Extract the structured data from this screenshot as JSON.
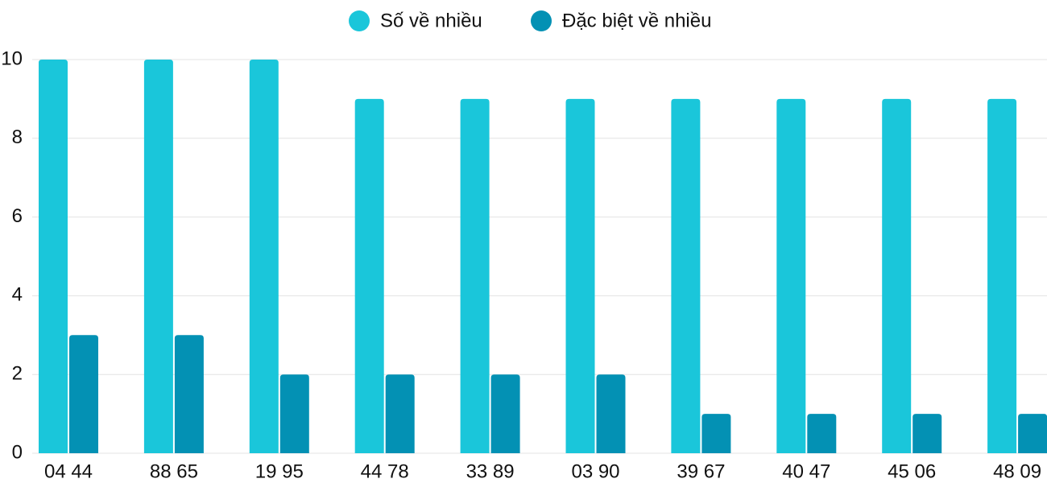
{
  "chart_data": {
    "type": "bar",
    "categories": [
      "04 44",
      "88 65",
      "19 95",
      "44 78",
      "33 89",
      "03 90",
      "39 67",
      "40 47",
      "45 06",
      "48 09"
    ],
    "series": [
      {
        "name": "Số về nhiều",
        "color": "#1ac6da",
        "values": [
          10,
          10,
          10,
          9,
          9,
          9,
          9,
          9,
          9,
          9
        ]
      },
      {
        "name": "Đặc biệt về nhiều",
        "color": "#0391b4",
        "values": [
          3,
          3,
          2,
          2,
          2,
          2,
          1,
          1,
          1,
          1
        ]
      }
    ],
    "ylim": [
      0,
      10
    ],
    "yticks": [
      0,
      2,
      4,
      6,
      8,
      10
    ],
    "grid": true,
    "legend": "top"
  }
}
